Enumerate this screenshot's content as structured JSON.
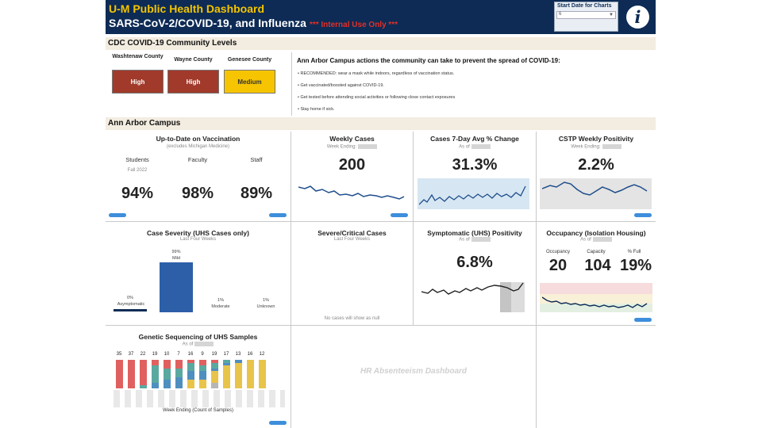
{
  "header": {
    "title": "U-M Public Health Dashboard",
    "subtitle": "SARS-CoV-2/COVID-19, and Influenza",
    "warning": "*** Internal Use Only ***",
    "date_filter_label": "Start Date for Charts",
    "date_filter_value": "6",
    "info_icon_glyph": "i"
  },
  "cdc": {
    "section_title": "CDC COVID-19 Community Levels",
    "counties": [
      {
        "name": "Washtenaw County",
        "level": "High",
        "color": "#a13a2a"
      },
      {
        "name": "Wayne County",
        "level": "High",
        "color": "#a13a2a"
      },
      {
        "name": "Genesee County",
        "level": "Medium",
        "color": "#f6c400"
      }
    ],
    "actions_title": "Ann Arbor Campus actions the community can take to prevent the spread of COVID-19:",
    "actions": [
      "RECOMMENDED: wear a mask while indoors, regardless of vaccination status.",
      "Get vaccinated/boosted against COVID-19.",
      "Get tested before attending social activities or following close contact exposures",
      "Stay home if sick."
    ]
  },
  "campus": {
    "section_title": "Ann Arbor Campus",
    "vaccination": {
      "title": "Up-to-Date on Vaccination",
      "subtitle": "(excludes Michigan Medicine)",
      "groups": [
        {
          "label": "Students",
          "note": "Fall 2022",
          "value": "94%"
        },
        {
          "label": "Faculty",
          "note": "",
          "value": "98%"
        },
        {
          "label": "Staff",
          "note": "",
          "value": "89%"
        }
      ]
    },
    "weekly_cases": {
      "title": "Weekly Cases",
      "subtitle": "Week Ending:",
      "value": "200"
    },
    "cases_change": {
      "title": "Cases 7-Day Avg % Change",
      "subtitle": "As of",
      "value": "31.3%"
    },
    "cstp": {
      "title": "CSTP Weekly Positivity",
      "subtitle": "Week Ending:",
      "value": "2.2%"
    },
    "severity": {
      "title": "Case Severity (UHS Cases only)",
      "subtitle": "Last Four Weeks",
      "bars": [
        {
          "pct": "0%",
          "label": "Asymptomatic",
          "value": 0
        },
        {
          "pct": "99%",
          "label": "Mild",
          "value": 99
        },
        {
          "pct": "1%",
          "label": "Moderate",
          "value": 1
        },
        {
          "pct": "1%",
          "label": "Unknown",
          "value": 1
        }
      ]
    },
    "severe": {
      "title": "Severe/Critical Cases",
      "subtitle": "Last Four Weeks",
      "note": "No cases will show as null"
    },
    "symptomatic": {
      "title": "Symptomatic (UHS) Positivity",
      "subtitle": "As of",
      "value": "6.8%"
    },
    "occupancy": {
      "title": "Occupancy (Isolation Housing)",
      "subtitle": "As of",
      "stats": [
        {
          "label": "Occupancy",
          "value": "20"
        },
        {
          "label": "Capacity",
          "value": "104"
        },
        {
          "label": "% Full",
          "value": "19%"
        }
      ]
    },
    "genetic": {
      "title": "Genetic Sequencing of UHS Samples",
      "subtitle": "As of",
      "counts": [
        "35",
        "37",
        "22",
        "19",
        "10",
        "7",
        "16",
        "9",
        "19",
        "17",
        "13",
        "16",
        "12"
      ],
      "xlabel": "Week Ending (Count of Samples)"
    },
    "hr_placeholder": "HR Absenteeism Dashboard"
  }
}
